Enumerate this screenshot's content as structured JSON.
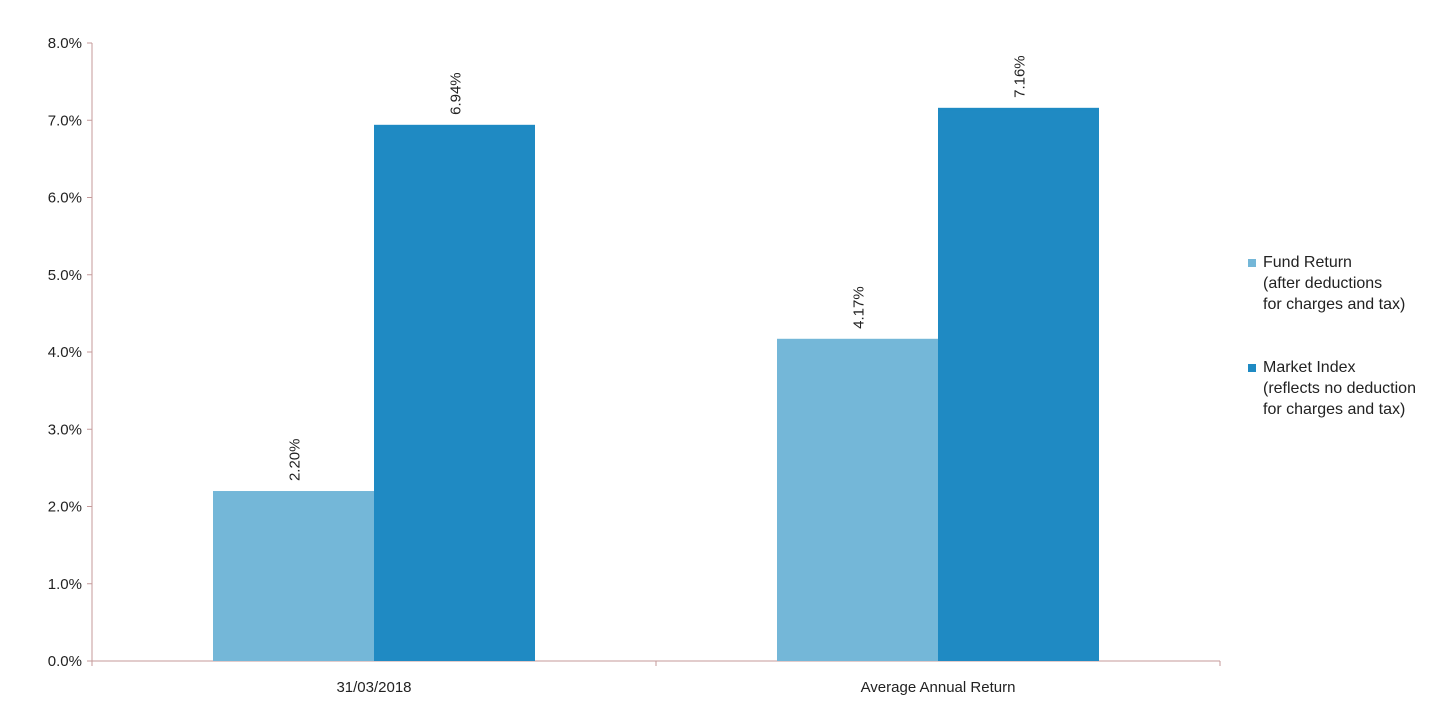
{
  "chart_data": {
    "type": "bar",
    "categories": [
      "31/03/2018",
      "Average Annual Return"
    ],
    "series": [
      {
        "name": "Fund Return\n(after deductions\nfor charges and tax)",
        "values": [
          2.2,
          4.17
        ],
        "labels": [
          "2.20%",
          "4.17%"
        ],
        "color": "#74b7d8"
      },
      {
        "name": "Market Index\n(reflects no deduction\nfor charges and tax)",
        "values": [
          6.94,
          7.16
        ],
        "labels": [
          "6.94%",
          "7.16%"
        ],
        "color": "#1f8ac3"
      }
    ],
    "ylim": [
      0,
      8
    ],
    "yticks": [
      0,
      1,
      2,
      3,
      4,
      5,
      6,
      7,
      8
    ],
    "ytick_labels": [
      "0.0%",
      "1.0%",
      "2.0%",
      "3.0%",
      "4.0%",
      "5.0%",
      "6.0%",
      "7.0%",
      "8.0%"
    ],
    "axis_color": "#c49a9a",
    "grid": false,
    "legend_position": "right"
  }
}
